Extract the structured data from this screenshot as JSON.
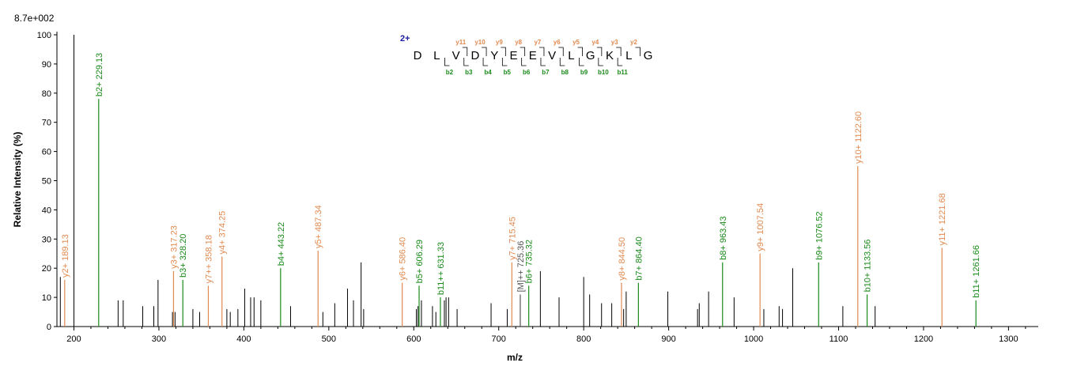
{
  "chart_data": {
    "type": "bar",
    "title": "",
    "y_scale_label": "8.7e+002",
    "xlabel": "m/z",
    "ylabel": "Relative   Intensity (%)",
    "xlim": [
      180,
      1335
    ],
    "ylim": [
      0,
      100
    ],
    "x_ticks": [
      200,
      300,
      400,
      500,
      600,
      700,
      800,
      900,
      1000,
      1100,
      1200,
      1300
    ],
    "y_ticks": [
      0,
      10,
      20,
      30,
      40,
      50,
      60,
      70,
      80,
      90,
      100
    ],
    "colors": {
      "unassigned": "#000000",
      "b_ion": "#1a8a1a",
      "y_ion": "#e08a50",
      "precursor": "#555555"
    },
    "peaks_unlabeled": [
      {
        "mz": 184,
        "i": 17
      },
      {
        "mz": 200,
        "i": 100
      },
      {
        "mz": 252,
        "i": 9
      },
      {
        "mz": 258,
        "i": 9
      },
      {
        "mz": 281,
        "i": 7
      },
      {
        "mz": 294,
        "i": 7
      },
      {
        "mz": 299,
        "i": 16
      },
      {
        "mz": 316,
        "i": 5
      },
      {
        "mz": 319,
        "i": 5
      },
      {
        "mz": 340,
        "i": 6
      },
      {
        "mz": 348,
        "i": 5
      },
      {
        "mz": 380,
        "i": 6
      },
      {
        "mz": 384,
        "i": 5
      },
      {
        "mz": 393,
        "i": 6
      },
      {
        "mz": 401,
        "i": 13
      },
      {
        "mz": 408,
        "i": 10
      },
      {
        "mz": 412,
        "i": 10
      },
      {
        "mz": 420,
        "i": 9
      },
      {
        "mz": 455,
        "i": 7
      },
      {
        "mz": 493,
        "i": 5
      },
      {
        "mz": 507,
        "i": 8
      },
      {
        "mz": 522,
        "i": 13
      },
      {
        "mz": 529,
        "i": 9
      },
      {
        "mz": 538,
        "i": 22
      },
      {
        "mz": 541,
        "i": 6
      },
      {
        "mz": 603,
        "i": 6
      },
      {
        "mz": 605,
        "i": 7
      },
      {
        "mz": 609,
        "i": 9
      },
      {
        "mz": 622,
        "i": 7
      },
      {
        "mz": 626,
        "i": 5
      },
      {
        "mz": 636,
        "i": 9
      },
      {
        "mz": 638,
        "i": 10
      },
      {
        "mz": 641,
        "i": 10
      },
      {
        "mz": 651,
        "i": 6
      },
      {
        "mz": 691,
        "i": 8
      },
      {
        "mz": 710,
        "i": 6
      },
      {
        "mz": 749,
        "i": 19
      },
      {
        "mz": 771,
        "i": 10
      },
      {
        "mz": 800,
        "i": 17
      },
      {
        "mz": 807,
        "i": 11
      },
      {
        "mz": 821,
        "i": 8
      },
      {
        "mz": 833,
        "i": 8
      },
      {
        "mz": 847,
        "i": 6
      },
      {
        "mz": 850,
        "i": 12
      },
      {
        "mz": 899,
        "i": 12
      },
      {
        "mz": 934,
        "i": 6
      },
      {
        "mz": 936,
        "i": 8
      },
      {
        "mz": 947,
        "i": 12
      },
      {
        "mz": 977,
        "i": 10
      },
      {
        "mz": 1012,
        "i": 6
      },
      {
        "mz": 1030,
        "i": 7
      },
      {
        "mz": 1034,
        "i": 6
      },
      {
        "mz": 1046,
        "i": 20
      },
      {
        "mz": 1105,
        "i": 7
      },
      {
        "mz": 1143,
        "i": 7
      }
    ],
    "peaks_labeled": [
      {
        "mz": 189.13,
        "i": 16,
        "type": "y",
        "label": "y2+ 189.13"
      },
      {
        "mz": 229.13,
        "i": 78,
        "type": "b",
        "label": "b2+ 229.13"
      },
      {
        "mz": 317.23,
        "i": 19,
        "type": "y",
        "label": "y3+ 317.23"
      },
      {
        "mz": 328.2,
        "i": 16,
        "type": "b",
        "label": "b3+ 328.20"
      },
      {
        "mz": 358.18,
        "i": 14,
        "type": "y",
        "label": "y7++ 358.18"
      },
      {
        "mz": 374.25,
        "i": 24,
        "type": "y",
        "label": "y4+ 374.25"
      },
      {
        "mz": 443.22,
        "i": 20,
        "type": "b",
        "label": "b4+ 443.22"
      },
      {
        "mz": 487.34,
        "i": 26,
        "type": "y",
        "label": "y5+ 487.34"
      },
      {
        "mz": 586.4,
        "i": 15,
        "type": "y",
        "label": "y6+ 586.40"
      },
      {
        "mz": 606.29,
        "i": 14,
        "type": "b",
        "label": "b5+ 606.29"
      },
      {
        "mz": 631.33,
        "i": 10,
        "type": "b",
        "label": "b11++ 631.33"
      },
      {
        "mz": 715.45,
        "i": 22,
        "type": "y",
        "label": "y7+ 715.45"
      },
      {
        "mz": 725.36,
        "i": 11,
        "type": "precursor",
        "label": "[M]++ 725.36"
      },
      {
        "mz": 735.32,
        "i": 14,
        "type": "b",
        "label": "b6+ 735.32"
      },
      {
        "mz": 844.5,
        "i": 15,
        "type": "y",
        "label": "y8+ 844.50"
      },
      {
        "mz": 864.4,
        "i": 15,
        "type": "b",
        "label": "b7+ 864.40"
      },
      {
        "mz": 963.43,
        "i": 22,
        "type": "b",
        "label": "b8+ 963.43"
      },
      {
        "mz": 1007.54,
        "i": 25,
        "type": "y",
        "label": "y9+ 1007.54"
      },
      {
        "mz": 1076.52,
        "i": 22,
        "type": "b",
        "label": "b9+ 1076.52"
      },
      {
        "mz": 1122.6,
        "i": 55,
        "type": "y",
        "label": "y10+ 1122.60"
      },
      {
        "mz": 1133.56,
        "i": 11,
        "type": "b",
        "label": "b10+ 1133.56"
      },
      {
        "mz": 1221.68,
        "i": 27,
        "type": "y",
        "label": "y11+ 1221.68"
      },
      {
        "mz": 1261.66,
        "i": 9,
        "type": "b",
        "label": "b11+ 1261.66"
      }
    ],
    "sequence": {
      "charge": "2+",
      "residues": [
        "D",
        "L",
        "V",
        "D",
        "Y",
        "E",
        "E",
        "V",
        "L",
        "G",
        "K",
        "L",
        "G"
      ],
      "y_ions": [
        "y11",
        "y10",
        "y9",
        "y8",
        "y7",
        "y6",
        "y5",
        "y4",
        "y3",
        "y2"
      ],
      "b_ions": [
        "b2",
        "b3",
        "b4",
        "b5",
        "b6",
        "b7",
        "b8",
        "b9",
        "b10",
        "b11"
      ]
    }
  }
}
